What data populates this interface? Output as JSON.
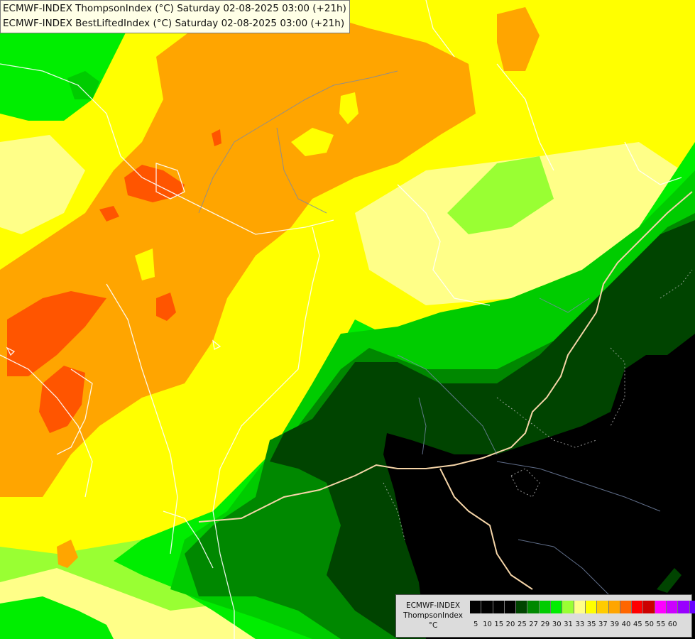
{
  "title": {
    "line1": "ECMWF-INDEX ThompsonIndex (°C) Saturday 02-08-2025 03:00 (+21h)",
    "line2": "ECMWF-INDEX BestLiftedIndex (°C) Saturday 02-08-2025 03:00 (+21h)"
  },
  "legend": {
    "line1": "ECMWF-INDEX",
    "line2": "ThompsonIndex",
    "line3": "°C",
    "ticks": [
      "5",
      "10",
      "15",
      "20",
      "25",
      "27",
      "29",
      "30",
      "31",
      "33",
      "35",
      "37",
      "39",
      "40",
      "45",
      "50",
      "55",
      "60"
    ],
    "colors": [
      "#000000",
      "#000000",
      "#000000",
      "#000000",
      "#004400",
      "#008800",
      "#00cc00",
      "#00ee00",
      "#99ff33",
      "#ffff88",
      "#ffff00",
      "#ffcc00",
      "#ffa500",
      "#ff6600",
      "#ff0000",
      "#cc0000",
      "#ff00ff",
      "#cc00ff",
      "#9900ff",
      "#6600ff",
      "#3300ff",
      "#0000ff"
    ]
  },
  "map_colors": {
    "black": "#000000",
    "dark_green": "#004400",
    "mid_green": "#008800",
    "green": "#00cc00",
    "bright_green": "#00ee00",
    "light_green": "#99ff33",
    "pale_yellow": "#ffff88",
    "yellow": "#ffff00",
    "gold": "#ffd700",
    "orange": "#ffa500",
    "red_orange": "#ff5500",
    "border_color": "#f5d5a8",
    "line_color": "#ffffff"
  }
}
